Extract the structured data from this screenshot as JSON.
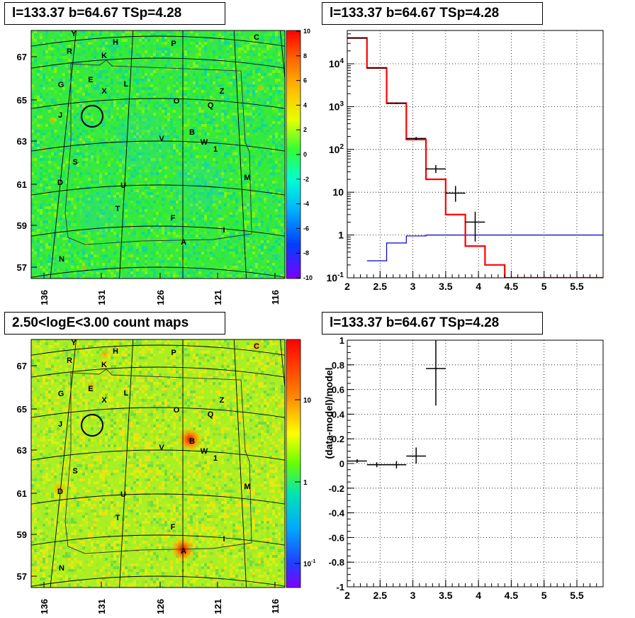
{
  "panels": {
    "tl": {
      "title": "l=133.37 b=64.67 TSp=4.28"
    },
    "tr": {
      "title": "l=133.37 b=64.67 TSp=4.28"
    },
    "bl": {
      "title": "2.50<logE<3.00 count maps"
    },
    "br": {
      "title": "l=133.37 b=64.67 TSp=4.28"
    }
  },
  "colors": {
    "model": "#ff0000",
    "background_model": "#0000cc",
    "data": "#000000",
    "grid": "#000000"
  },
  "chart_data": [
    {
      "id": "residual-map",
      "type": "heatmap",
      "title": "l=133.37 b=64.67 TSp=4.28",
      "x_ticks": [
        "136",
        "131",
        "126",
        "121",
        "116"
      ],
      "y_ticks": [
        "67",
        "65",
        "63",
        "61",
        "59",
        "57"
      ],
      "colorbar_ticks": [
        "10",
        "8",
        "6",
        "4",
        "2",
        "0",
        "-2",
        "-4",
        "-6",
        "-8",
        "-10"
      ],
      "colorbar_range": [
        -10,
        10
      ],
      "source_labels": [
        "Y",
        "H",
        "P",
        "C",
        "R",
        "K",
        "G",
        "E",
        "L",
        "X",
        "Z",
        "O",
        "Q",
        "J",
        "V",
        "B",
        "W",
        "1",
        "S",
        "M",
        "D",
        "U",
        "T",
        "F",
        "I",
        "A",
        "N"
      ],
      "circle_marker": {
        "l": 133.37,
        "b": 64.67
      }
    },
    {
      "id": "spectrum",
      "type": "line",
      "title": "l=133.37 b=64.67 TSp=4.28",
      "x_ticks": [
        "2",
        "2.5",
        "3",
        "3.5",
        "4",
        "4.5",
        "5",
        "5.5"
      ],
      "y_ticks": [
        "10^4",
        "10^3",
        "10^2",
        "10",
        "1",
        "10^-1"
      ],
      "xlim": [
        2,
        5.9
      ],
      "ylim": [
        0.1,
        60000
      ],
      "log_y": true,
      "grid": true,
      "series": [
        {
          "role": "model",
          "bins": [
            2.0,
            2.3,
            2.6,
            2.9,
            3.2,
            3.5,
            3.8,
            4.1,
            4.4,
            4.7,
            5.0,
            5.3,
            5.6,
            5.9
          ],
          "values": [
            40000,
            8000,
            1200,
            170,
            20,
            3,
            0.55,
            0.2,
            0.1,
            0.1,
            0.1,
            0.1,
            0.1
          ]
        },
        {
          "role": "background",
          "bins": [
            2.3,
            2.6,
            2.9,
            3.2,
            3.5,
            3.8,
            4.1,
            4.4,
            4.7,
            5.0,
            5.3,
            5.6,
            5.9
          ],
          "values": [
            0.25,
            0.65,
            0.95,
            1.0,
            1.0,
            1.0,
            1.0,
            1.0,
            1.0,
            1.0,
            1.0,
            1.0
          ]
        },
        {
          "role": "data",
          "points": [
            {
              "x": 2.15,
              "y": 40000,
              "xerr": 0.15,
              "ylo": 39600,
              "yhi": 40400
            },
            {
              "x": 2.45,
              "y": 8000,
              "xerr": 0.15,
              "ylo": 7900,
              "yhi": 8100
            },
            {
              "x": 2.75,
              "y": 1200,
              "xerr": 0.15,
              "ylo": 1150,
              "yhi": 1250
            },
            {
              "x": 3.05,
              "y": 180,
              "xerr": 0.15,
              "ylo": 165,
              "yhi": 195
            },
            {
              "x": 3.35,
              "y": 35,
              "xerr": 0.15,
              "ylo": 28,
              "yhi": 43
            },
            {
              "x": 3.65,
              "y": 9.5,
              "xerr": 0.15,
              "ylo": 6,
              "yhi": 14
            },
            {
              "x": 3.95,
              "y": 2,
              "xerr": 0.15,
              "ylo": 0.7,
              "yhi": 3.5
            }
          ]
        }
      ]
    },
    {
      "id": "count-map",
      "type": "heatmap",
      "title": "2.50<logE<3.00 count maps",
      "x_ticks": [
        "136",
        "131",
        "126",
        "121",
        "116"
      ],
      "y_ticks": [
        "67",
        "65",
        "63",
        "61",
        "59",
        "57"
      ],
      "colorbar_ticks": [
        "10",
        "1",
        "10^-1"
      ],
      "log_colorbar": true,
      "source_labels": [
        "Y",
        "H",
        "P",
        "C",
        "R",
        "K",
        "G",
        "E",
        "L",
        "X",
        "Z",
        "O",
        "Q",
        "J",
        "V",
        "B",
        "W",
        "1",
        "S",
        "M",
        "D",
        "U",
        "T",
        "F",
        "I",
        "A",
        "N"
      ],
      "circle_marker": {
        "l": 133.37,
        "b": 64.67
      }
    },
    {
      "id": "residual-ratio",
      "type": "scatter",
      "title": "l=133.37 b=64.67 TSp=4.28",
      "ylabel": "(data-model)/model",
      "x_ticks": [
        "2",
        "2.5",
        "3",
        "3.5",
        "4",
        "4.5",
        "5",
        "5.5"
      ],
      "y_ticks": [
        "1",
        "0.8",
        "0.6",
        "0.4",
        "0.2",
        "0",
        "-0.2",
        "-0.4",
        "-0.6",
        "-0.8",
        "-1"
      ],
      "xlim": [
        2,
        5.9
      ],
      "ylim": [
        -1,
        1
      ],
      "grid": true,
      "points": [
        {
          "x": 2.15,
          "y": 0.02,
          "xerr": 0.15,
          "ylo": 0.005,
          "yhi": 0.035
        },
        {
          "x": 2.45,
          "y": -0.01,
          "xerr": 0.15,
          "ylo": -0.03,
          "yhi": 0.01
        },
        {
          "x": 2.75,
          "y": -0.01,
          "xerr": 0.15,
          "ylo": -0.04,
          "yhi": 0.02
        },
        {
          "x": 3.05,
          "y": 0.06,
          "xerr": 0.15,
          "ylo": 0.0,
          "yhi": 0.13
        },
        {
          "x": 3.35,
          "y": 0.77,
          "xerr": 0.15,
          "ylo": 0.47,
          "yhi": 1.0
        }
      ]
    }
  ]
}
